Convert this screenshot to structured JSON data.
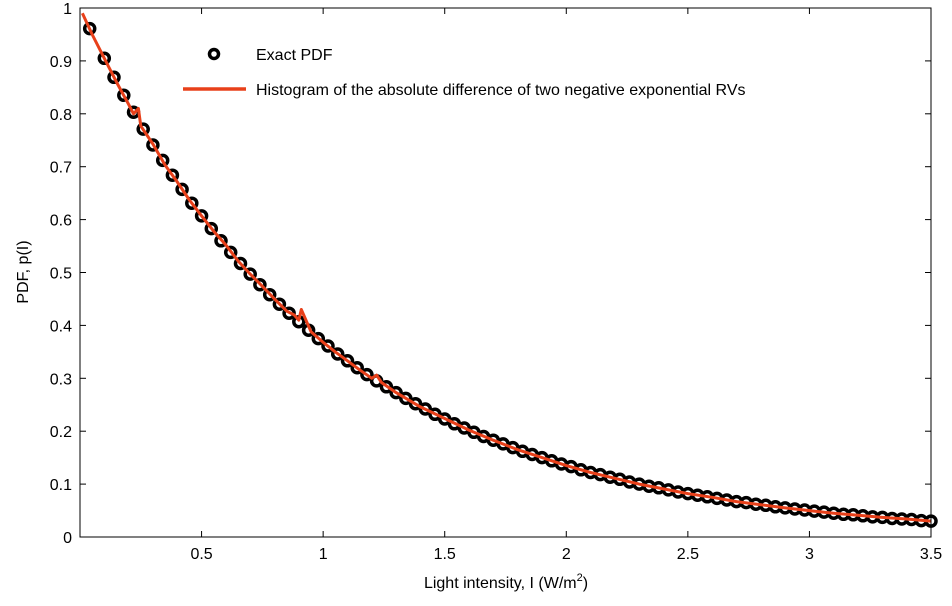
{
  "chart_data": {
    "type": "line",
    "title": "",
    "xlabel": "Light intensity, I (W/m",
    "xlabel_sup": "2",
    "xlabel_suffix": ")",
    "ylabel": "PDF, p(I)",
    "xlim": [
      0,
      3.5
    ],
    "ylim": [
      0,
      1
    ],
    "xticks": [
      0.5,
      1,
      1.5,
      2,
      2.5,
      3,
      3.5
    ],
    "xtick_labels": [
      "0.5",
      "1",
      "1.5",
      "2",
      "2.5",
      "3",
      "3.5"
    ],
    "yticks": [
      0,
      0.1,
      0.2,
      0.3,
      0.4,
      0.5,
      0.6,
      0.7,
      0.8,
      0.9,
      1
    ],
    "ytick_labels": [
      "0",
      "0.1",
      "0.2",
      "0.3",
      "0.4",
      "0.5",
      "0.6",
      "0.7",
      "0.8",
      "0.9",
      "1"
    ],
    "grid": false,
    "legend_position": "top-center",
    "series": [
      {
        "name": "Exact PDF",
        "style": "markers",
        "marker": "circle",
        "color": "#000000",
        "x": [
          0.04,
          0.1,
          0.14,
          0.18,
          0.22,
          0.26,
          0.3,
          0.34,
          0.38,
          0.42,
          0.46,
          0.5,
          0.54,
          0.58,
          0.62,
          0.66,
          0.7,
          0.74,
          0.78,
          0.82,
          0.86,
          0.9,
          0.94,
          0.98,
          1.02,
          1.06,
          1.1,
          1.14,
          1.18,
          1.22,
          1.26,
          1.3,
          1.34,
          1.38,
          1.42,
          1.46,
          1.5,
          1.54,
          1.58,
          1.62,
          1.66,
          1.7,
          1.74,
          1.78,
          1.82,
          1.86,
          1.9,
          1.94,
          1.98,
          2.02,
          2.06,
          2.1,
          2.14,
          2.18,
          2.22,
          2.26,
          2.3,
          2.34,
          2.38,
          2.42,
          2.46,
          2.5,
          2.54,
          2.58,
          2.62,
          2.66,
          2.7,
          2.74,
          2.78,
          2.82,
          2.86,
          2.9,
          2.94,
          2.98,
          3.02,
          3.06,
          3.1,
          3.14,
          3.18,
          3.22,
          3.26,
          3.3,
          3.34,
          3.38,
          3.42,
          3.46,
          3.5
        ],
        "y": [
          0.961,
          0.905,
          0.869,
          0.835,
          0.803,
          0.771,
          0.741,
          0.712,
          0.684,
          0.657,
          0.631,
          0.607,
          0.583,
          0.56,
          0.538,
          0.517,
          0.497,
          0.477,
          0.458,
          0.44,
          0.423,
          0.407,
          0.391,
          0.375,
          0.361,
          0.346,
          0.333,
          0.32,
          0.307,
          0.295,
          0.284,
          0.273,
          0.262,
          0.252,
          0.242,
          0.232,
          0.223,
          0.214,
          0.206,
          0.198,
          0.19,
          0.183,
          0.176,
          0.169,
          0.162,
          0.156,
          0.15,
          0.144,
          0.138,
          0.133,
          0.127,
          0.122,
          0.118,
          0.113,
          0.109,
          0.104,
          0.1,
          0.096,
          0.093,
          0.089,
          0.085,
          0.082,
          0.079,
          0.076,
          0.073,
          0.07,
          0.067,
          0.065,
          0.062,
          0.06,
          0.057,
          0.055,
          0.053,
          0.051,
          0.049,
          0.047,
          0.045,
          0.043,
          0.042,
          0.04,
          0.038,
          0.037,
          0.035,
          0.034,
          0.033,
          0.031,
          0.03
        ]
      },
      {
        "name": "Histogram of the absolute difference of two negative exponential RVs",
        "style": "line",
        "color": "#e8401a",
        "x": [
          0.01,
          0.05,
          0.1,
          0.15,
          0.2,
          0.22,
          0.24,
          0.25,
          0.3,
          0.35,
          0.4,
          0.45,
          0.5,
          0.55,
          0.6,
          0.65,
          0.7,
          0.75,
          0.8,
          0.85,
          0.88,
          0.9,
          0.91,
          0.95,
          1.0,
          1.05,
          1.1,
          1.15,
          1.2,
          1.22,
          1.24,
          1.3,
          1.4,
          1.5,
          1.6,
          1.7,
          1.8,
          1.9,
          2.0,
          2.1,
          2.2,
          2.3,
          2.4,
          2.5,
          2.6,
          2.7,
          2.8,
          2.9,
          3.0,
          3.1,
          3.2,
          3.3,
          3.4,
          3.5
        ],
        "y": [
          0.99,
          0.95,
          0.905,
          0.86,
          0.818,
          0.8,
          0.81,
          0.777,
          0.743,
          0.703,
          0.671,
          0.637,
          0.607,
          0.578,
          0.552,
          0.522,
          0.497,
          0.474,
          0.45,
          0.427,
          0.42,
          0.41,
          0.43,
          0.388,
          0.368,
          0.35,
          0.333,
          0.316,
          0.3,
          0.306,
          0.292,
          0.273,
          0.246,
          0.224,
          0.202,
          0.183,
          0.165,
          0.15,
          0.135,
          0.122,
          0.111,
          0.1,
          0.091,
          0.082,
          0.075,
          0.067,
          0.061,
          0.055,
          0.05,
          0.045,
          0.041,
          0.037,
          0.034,
          0.03
        ]
      }
    ]
  }
}
